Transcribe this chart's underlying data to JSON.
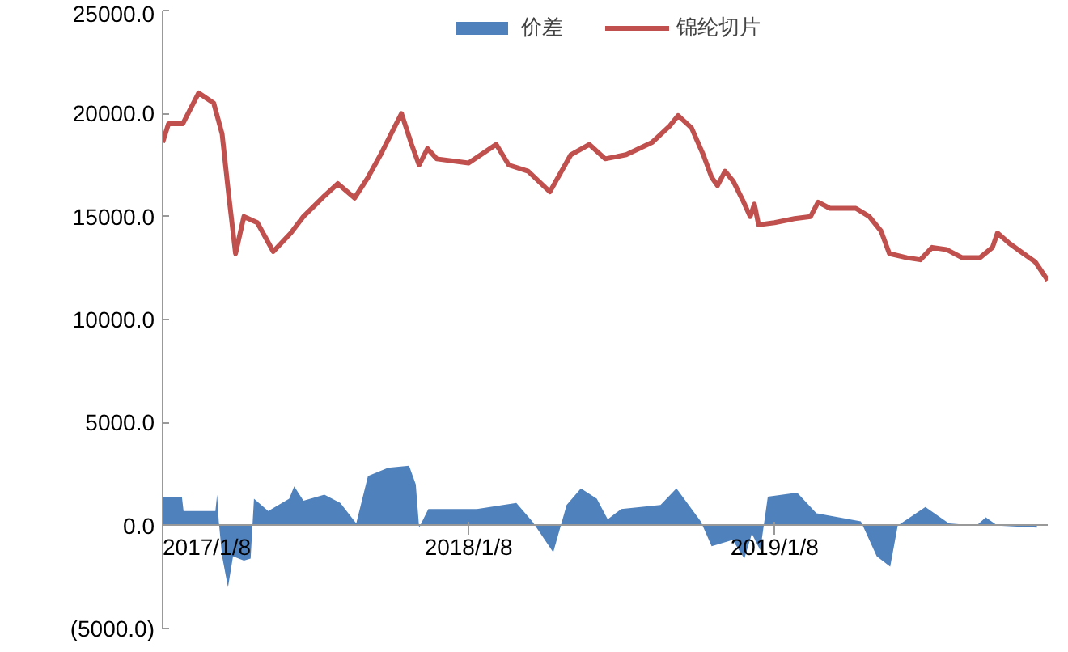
{
  "chart_data": {
    "type": "line",
    "legend": "top",
    "grid": false,
    "ylim": [
      -5000,
      25000
    ],
    "yticks": [
      {
        "value": -5000,
        "label": "(5000.0)"
      },
      {
        "value": 0,
        "label": "0.0"
      },
      {
        "value": 5000,
        "label": "5000.0"
      },
      {
        "value": 10000,
        "label": "10000.0"
      },
      {
        "value": 15000,
        "label": "15000.0"
      },
      {
        "value": 20000,
        "label": "20000.0"
      },
      {
        "value": 25000,
        "label": "25000.0"
      }
    ],
    "xlim": [
      "2017-01-08",
      "2019-11-30"
    ],
    "xticks": [
      {
        "value": "2017-01-08",
        "label": "2017/1/8"
      },
      {
        "value": "2018-01-08",
        "label": "2018/1/8"
      },
      {
        "value": "2019-01-08",
        "label": "2019/1/8"
      }
    ],
    "series": [
      {
        "name": "价差",
        "type": "area",
        "color": "#4f81bd",
        "x": [
          "2017-01-08",
          "2017-01-31",
          "2017-02-02",
          "2017-03-12",
          "2017-03-14",
          "2017-03-16",
          "2017-03-20",
          "2017-03-27",
          "2017-04-02",
          "2017-04-15",
          "2017-04-23",
          "2017-04-27",
          "2017-05-14",
          "2017-06-08",
          "2017-06-14",
          "2017-06-25",
          "2017-07-20",
          "2017-08-08",
          "2017-08-27",
          "2017-09-10",
          "2017-10-04",
          "2017-10-29",
          "2017-11-06",
          "2017-11-10",
          "2017-11-21",
          "2018-01-18",
          "2018-03-06",
          "2018-03-25",
          "2018-04-19",
          "2018-05-05",
          "2018-05-22",
          "2018-06-10",
          "2018-06-23",
          "2018-07-09",
          "2018-08-25",
          "2018-09-13",
          "2018-10-12",
          "2018-10-25",
          "2018-11-19",
          "2018-12-03",
          "2018-12-12",
          "2018-12-22",
          "2018-12-31",
          "2019-02-04",
          "2019-02-27",
          "2019-04-21",
          "2019-05-10",
          "2019-05-26",
          "2019-06-04",
          "2019-07-07",
          "2019-08-04",
          "2019-09-06",
          "2019-09-17",
          "2019-10-01",
          "2019-11-17"
        ],
        "values": [
          1400,
          1400,
          700,
          700,
          1500,
          200,
          -1500,
          -3000,
          -1500,
          -1700,
          -1600,
          1300,
          700,
          1300,
          1900,
          1200,
          1500,
          1100,
          100,
          2400,
          2800,
          2900,
          2000,
          -100,
          800,
          800,
          1100,
          200,
          -1300,
          1000,
          1800,
          1300,
          300,
          800,
          1000,
          1800,
          200,
          -1000,
          -700,
          -1600,
          -400,
          -1200,
          1400,
          1600,
          600,
          200,
          -1500,
          -2000,
          0,
          900,
          100,
          0,
          400,
          0,
          -100
        ]
      },
      {
        "name": "锦纶切片",
        "color": "#c0504d",
        "x": [
          "2017-01-08",
          "2017-01-15",
          "2017-02-01",
          "2017-02-20",
          "2017-03-10",
          "2017-03-20",
          "2017-03-28",
          "2017-04-05",
          "2017-04-15",
          "2017-05-01",
          "2017-05-20",
          "2017-06-10",
          "2017-06-25",
          "2017-07-20",
          "2017-08-05",
          "2017-08-25",
          "2017-09-10",
          "2017-09-25",
          "2017-10-10",
          "2017-10-20",
          "2017-11-01",
          "2017-11-10",
          "2017-11-20",
          "2017-12-01",
          "2018-01-08",
          "2018-02-10",
          "2018-02-25",
          "2018-03-20",
          "2018-04-15",
          "2018-05-10",
          "2018-06-01",
          "2018-06-20",
          "2018-07-15",
          "2018-08-15",
          "2018-09-05",
          "2018-09-15",
          "2018-10-01",
          "2018-10-15",
          "2018-10-25",
          "2018-11-01",
          "2018-11-10",
          "2018-11-20",
          "2018-12-01",
          "2018-12-10",
          "2018-12-15",
          "2018-12-20",
          "2019-01-08",
          "2019-02-01",
          "2019-02-20",
          "2019-03-01",
          "2019-03-15",
          "2019-04-15",
          "2019-05-01",
          "2019-05-15",
          "2019-05-25",
          "2019-06-15",
          "2019-07-01",
          "2019-07-15",
          "2019-08-01",
          "2019-08-20",
          "2019-09-10",
          "2019-09-25",
          "2019-10-01",
          "2019-10-15",
          "2019-11-01",
          "2019-11-15",
          "2019-11-30"
        ],
        "values": [
          18600,
          19500,
          19500,
          21000,
          20500,
          19000,
          16000,
          13200,
          15000,
          14700,
          13300,
          14200,
          15000,
          16000,
          16600,
          15900,
          16900,
          18000,
          19200,
          20000,
          18500,
          17500,
          18300,
          17800,
          17600,
          18500,
          17500,
          17200,
          16200,
          18000,
          18500,
          17800,
          18000,
          18600,
          19400,
          19900,
          19300,
          18000,
          16900,
          16500,
          17200,
          16700,
          15800,
          15000,
          15600,
          14600,
          14700,
          14900,
          15000,
          15700,
          15400,
          15400,
          15000,
          14300,
          13200,
          13000,
          12900,
          13500,
          13400,
          13000,
          13000,
          13500,
          14200,
          13700,
          13200,
          12800,
          11900
        ]
      }
    ]
  }
}
